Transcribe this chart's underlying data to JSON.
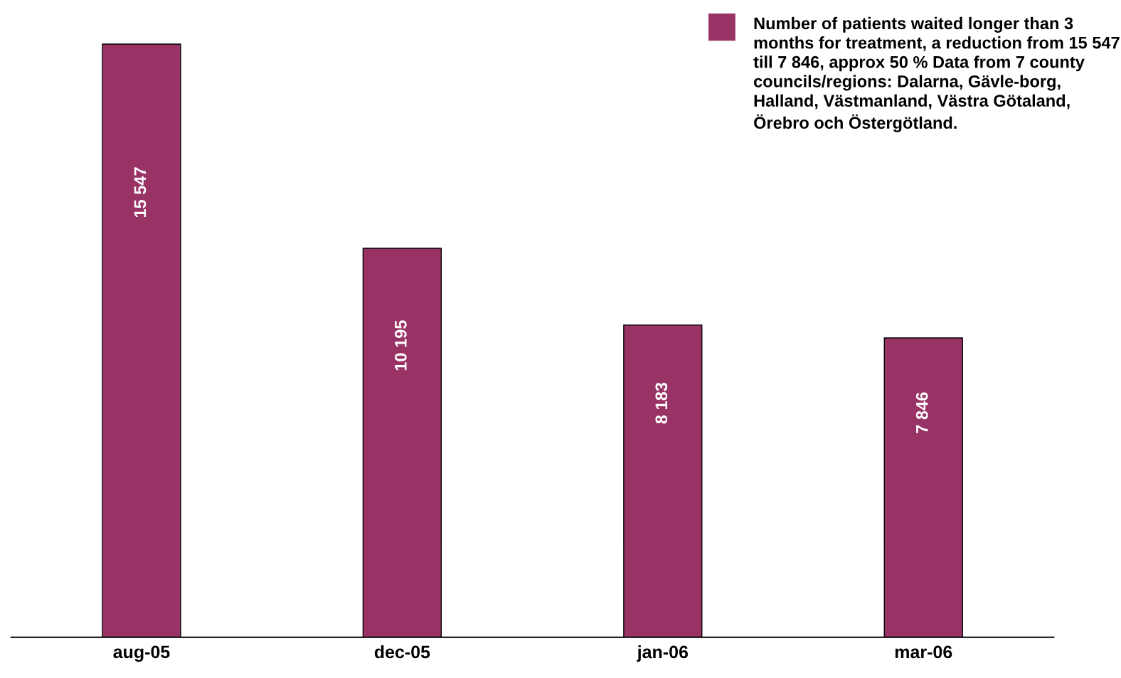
{
  "chart_data": {
    "type": "bar",
    "categories": [
      "aug-05",
      "dec-05",
      "jan-06",
      "mar-06"
    ],
    "series": [
      {
        "name": "Number of patients waited longer than 3 months for treatment, a reduction from 15 547 till 7 846, approx 50 % Data from 7 county councils/regions: Dalarna, Gävle-borg, Halland, Västmanland, Västra Götaland, Örebro och Östergötland.",
        "color": "#993366",
        "values": [
          15547,
          10195,
          8183,
          7846
        ],
        "value_labels": [
          "15 547",
          "10 195",
          "8 183",
          "7 846"
        ]
      }
    ],
    "legend": "top right",
    "grid": false
  }
}
